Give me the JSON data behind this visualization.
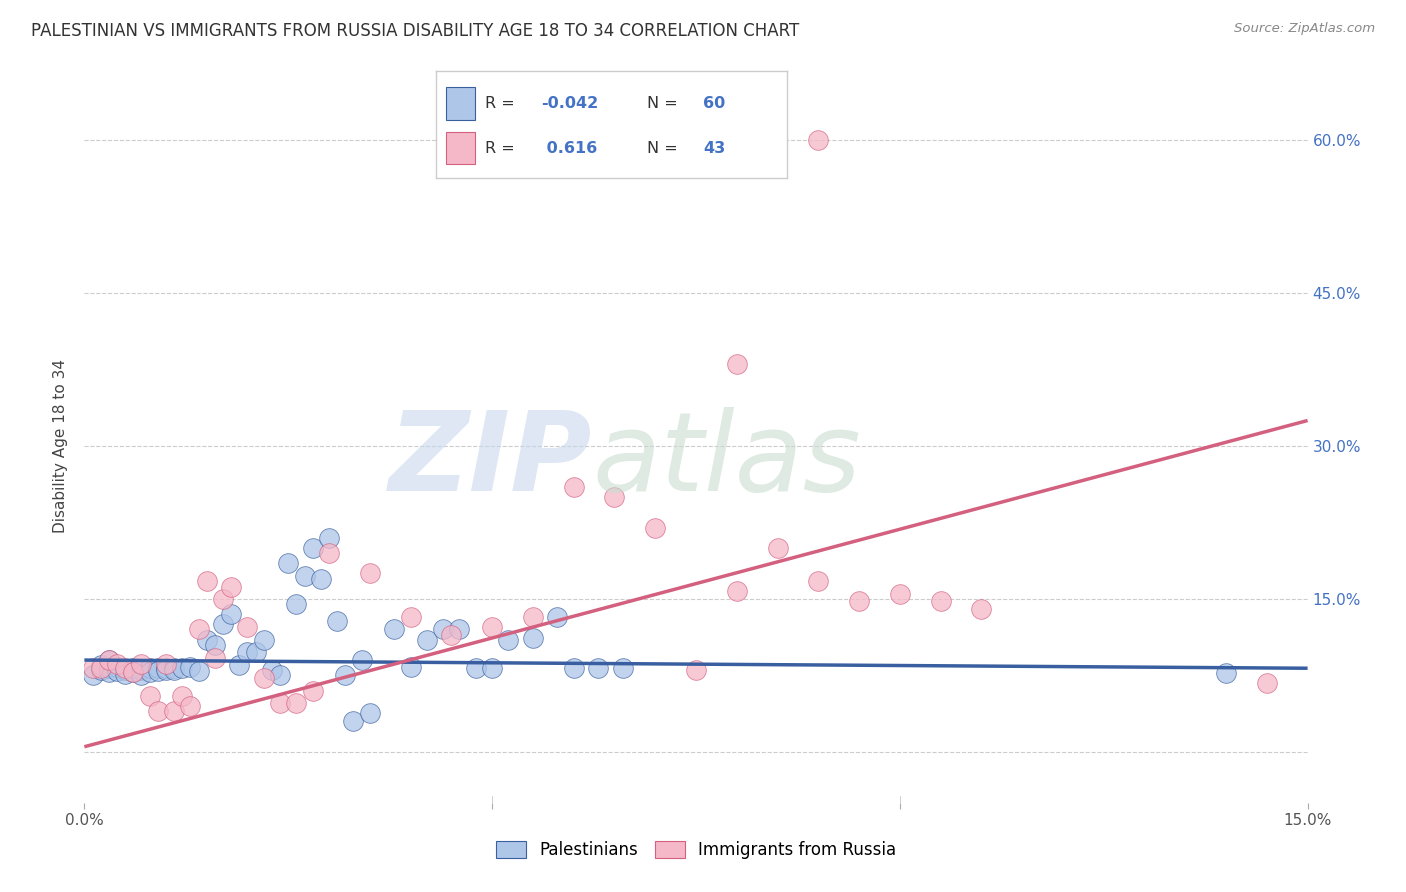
{
  "title": "PALESTINIAN VS IMMIGRANTS FROM RUSSIA DISABILITY AGE 18 TO 34 CORRELATION CHART",
  "source": "Source: ZipAtlas.com",
  "ylabel": "Disability Age 18 to 34",
  "xlim": [
    0.0,
    0.15
  ],
  "ylim": [
    -0.05,
    0.65
  ],
  "xticks": [
    0.0,
    0.05,
    0.1,
    0.15
  ],
  "xtick_labels": [
    "0.0%",
    "",
    "",
    "15.0%"
  ],
  "yticks": [
    0.0,
    0.15,
    0.3,
    0.45,
    0.6
  ],
  "ytick_labels_right": [
    "",
    "15.0%",
    "30.0%",
    "45.0%",
    "60.0%"
  ],
  "grid_color": "#cccccc",
  "background_color": "#ffffff",
  "palestinian_R": "-0.042",
  "palestinian_N": "60",
  "russia_R": "0.616",
  "russia_N": "43",
  "palestinian_color": "#aec6e8",
  "russia_color": "#f5b8c8",
  "trend_palestinian_color": "#3a5fa0",
  "trend_russia_color": "#d46080",
  "legend_label_1": "Palestinians",
  "legend_label_2": "Immigrants from Russia",
  "pal_x": [
    0.001,
    0.002,
    0.002,
    0.003,
    0.003,
    0.004,
    0.004,
    0.005,
    0.005,
    0.006,
    0.006,
    0.007,
    0.007,
    0.008,
    0.008,
    0.009,
    0.009,
    0.01,
    0.01,
    0.011,
    0.011,
    0.012,
    0.013,
    0.014,
    0.015,
    0.016,
    0.017,
    0.018,
    0.019,
    0.02,
    0.021,
    0.022,
    0.023,
    0.024,
    0.025,
    0.026,
    0.027,
    0.028,
    0.029,
    0.03,
    0.031,
    0.032,
    0.033,
    0.034,
    0.035,
    0.038,
    0.04,
    0.042,
    0.044,
    0.046,
    0.048,
    0.05,
    0.052,
    0.055,
    0.058,
    0.06,
    0.063,
    0.066,
    0.14,
    0.003
  ],
  "pal_y": [
    0.075,
    0.08,
    0.085,
    0.082,
    0.078,
    0.083,
    0.079,
    0.08,
    0.076,
    0.082,
    0.078,
    0.08,
    0.075,
    0.082,
    0.078,
    0.082,
    0.079,
    0.082,
    0.08,
    0.082,
    0.08,
    0.082,
    0.083,
    0.079,
    0.11,
    0.105,
    0.125,
    0.135,
    0.085,
    0.098,
    0.098,
    0.11,
    0.08,
    0.075,
    0.185,
    0.145,
    0.172,
    0.2,
    0.17,
    0.21,
    0.128,
    0.075,
    0.03,
    0.09,
    0.038,
    0.12,
    0.083,
    0.11,
    0.12,
    0.12,
    0.082,
    0.082,
    0.11,
    0.112,
    0.132,
    0.082,
    0.082,
    0.082,
    0.077,
    0.09
  ],
  "rus_x": [
    0.001,
    0.002,
    0.003,
    0.004,
    0.005,
    0.006,
    0.007,
    0.008,
    0.009,
    0.01,
    0.011,
    0.012,
    0.013,
    0.014,
    0.015,
    0.016,
    0.017,
    0.018,
    0.02,
    0.022,
    0.024,
    0.026,
    0.028,
    0.03,
    0.035,
    0.04,
    0.045,
    0.05,
    0.055,
    0.06,
    0.065,
    0.07,
    0.075,
    0.08,
    0.085,
    0.09,
    0.095,
    0.1,
    0.105,
    0.11,
    0.08,
    0.09,
    0.145
  ],
  "rus_y": [
    0.082,
    0.082,
    0.09,
    0.086,
    0.082,
    0.078,
    0.086,
    0.055,
    0.04,
    0.086,
    0.04,
    0.055,
    0.045,
    0.12,
    0.168,
    0.092,
    0.15,
    0.162,
    0.122,
    0.072,
    0.048,
    0.048,
    0.06,
    0.195,
    0.175,
    0.132,
    0.115,
    0.122,
    0.132,
    0.26,
    0.25,
    0.22,
    0.08,
    0.158,
    0.2,
    0.168,
    0.148,
    0.155,
    0.148,
    0.14,
    0.38,
    0.6,
    0.068
  ],
  "pal_trend_x0": 0.0,
  "pal_trend_x1": 0.15,
  "pal_trend_y0": 0.09,
  "pal_trend_y1": 0.082,
  "rus_trend_x0": 0.0,
  "rus_trend_x1": 0.15,
  "rus_trend_y0": 0.005,
  "rus_trend_y1": 0.325
}
